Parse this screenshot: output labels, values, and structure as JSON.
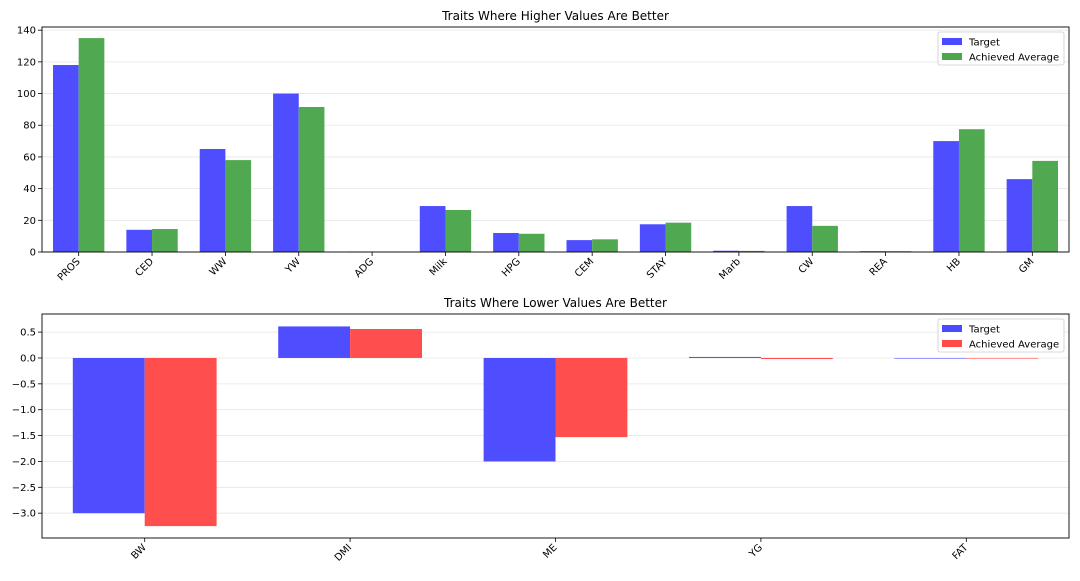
{
  "colors": {
    "target": "#4a4aff",
    "achieved_higher": "#4ca64c",
    "achieved_lower": "#ff4a4a",
    "grid": "#e6e6e6",
    "axis": "#000000"
  },
  "chart_data": [
    {
      "type": "bar",
      "title": "Traits Where Higher Values Are Better",
      "xlabel": "",
      "ylabel": "",
      "categories": [
        "PROS",
        "CED",
        "WW",
        "YW",
        "ADG",
        "Milk",
        "HPG",
        "CEM",
        "STAY",
        "Marb",
        "CW",
        "REA",
        "HB",
        "GM"
      ],
      "series": [
        {
          "name": "Target",
          "values": [
            118,
            14,
            65,
            100,
            0.3,
            29,
            12,
            7.5,
            17.5,
            0.8,
            29,
            0.5,
            70,
            46
          ]
        },
        {
          "name": "Achieved Average",
          "values": [
            135,
            14.5,
            58,
            91.5,
            0.3,
            26.5,
            11.5,
            8,
            18.5,
            0.7,
            16.5,
            0.5,
            77.5,
            57.5
          ]
        }
      ],
      "ylim": [
        0,
        142
      ],
      "yticks": [
        0,
        20,
        40,
        60,
        80,
        100,
        120,
        140
      ],
      "grid": true,
      "legend_position": "top-right"
    },
    {
      "type": "bar",
      "title": "Traits Where Lower Values Are Better",
      "xlabel": "",
      "ylabel": "",
      "categories": [
        "BW",
        "DMI",
        "ME",
        "YG",
        "FAT"
      ],
      "series": [
        {
          "name": "Target",
          "values": [
            -3.0,
            0.61,
            -2.0,
            0.02,
            0.0
          ]
        },
        {
          "name": "Achieved Average",
          "values": [
            -3.25,
            0.56,
            -1.53,
            -0.02,
            0.0
          ]
        }
      ],
      "ylim": [
        -3.48,
        0.85
      ],
      "yticks": [
        0.5,
        0.0,
        -0.5,
        -1.0,
        -1.5,
        -2.0,
        -2.5,
        -3.0
      ],
      "ytick_labels": [
        "0.5",
        "0.0",
        "−0.5",
        "−1.0",
        "−1.5",
        "−2.0",
        "−2.5",
        "−3.0"
      ],
      "grid": true,
      "legend_position": "top-right"
    }
  ]
}
